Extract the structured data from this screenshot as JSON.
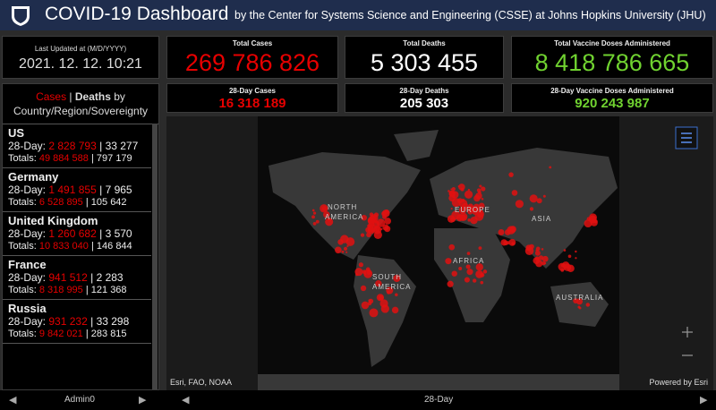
{
  "header": {
    "title": "COVID-19 Dashboard",
    "subtitle": "by the Center for Systems Science and Engineering (CSSE) at Johns Hopkins University (JHU)"
  },
  "last_updated": {
    "label": "Last Updated at (M/D/YYYY)",
    "value": "2021. 12. 12. 10:21"
  },
  "totals": [
    {
      "label": "Total Cases",
      "value": "269 786 826"
    },
    {
      "label": "Total Deaths",
      "value": "5 303 455"
    },
    {
      "label": "Total Vaccine Doses Administered",
      "value": "8 418 786 665"
    }
  ],
  "recent": [
    {
      "label": "28-Day Cases",
      "value": "16 318 189"
    },
    {
      "label": "28-Day Deaths",
      "value": "205 303"
    },
    {
      "label": "28-Day Vaccine Doses Administered",
      "value": "920 243 987"
    }
  ],
  "list": {
    "title_cases": "Cases",
    "separator": "|",
    "title_deaths": "Deaths",
    "title_by": "by",
    "title_rest": "Country/Region/Sovereignty",
    "day28_label": "28-Day:",
    "totals_label": "Totals:",
    "items": [
      {
        "name": "US",
        "day28_cases": "2 828 793",
        "day28_deaths": "33 277",
        "total_cases": "49 884 588",
        "total_deaths": "797 179"
      },
      {
        "name": "Germany",
        "day28_cases": "1 491 855",
        "day28_deaths": "7 965",
        "total_cases": "6 528 895",
        "total_deaths": "105 642"
      },
      {
        "name": "United Kingdom",
        "day28_cases": "1 260 682",
        "day28_deaths": "3 570",
        "total_cases": "10 833 040",
        "total_deaths": "146 844"
      },
      {
        "name": "France",
        "day28_cases": "941 512",
        "day28_deaths": "2 283",
        "total_cases": "8 318 995",
        "total_deaths": "121 368"
      },
      {
        "name": "Russia",
        "day28_cases": "931 232",
        "day28_deaths": "33 298",
        "total_cases": "9 842 021",
        "total_deaths": "283 815"
      }
    ]
  },
  "map": {
    "labels": [
      "NORTH",
      "AMERICA",
      "SOUTH",
      "AMERICA",
      "EUROPE",
      "ASIA",
      "AFRICA",
      "AUSTRALIA"
    ],
    "attribution": "Esri, FAO, NOAA",
    "powered": "Powered by Esri"
  },
  "footer": {
    "left": "Admin0",
    "center": "28-Day"
  }
}
